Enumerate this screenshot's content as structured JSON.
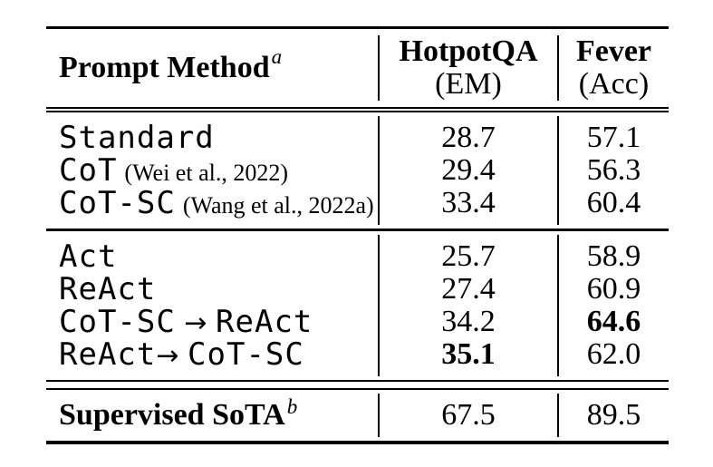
{
  "table": {
    "header": {
      "method_label": "Prompt Method",
      "method_sup": "a",
      "col2_line1": "HotpotQA",
      "col2_line2": "(EM)",
      "col3_line1": "Fever",
      "col3_line2": "(Acc)"
    },
    "section1": {
      "rows": [
        {
          "name": "Standard",
          "em": "28.7",
          "acc": "57.1"
        },
        {
          "name": "CoT",
          "citation": "(Wei et al., 2022)",
          "em": "29.4",
          "acc": "56.3"
        },
        {
          "name": "CoT-SC",
          "citation": "(Wang et al., 2022a)",
          "em": "33.4",
          "acc": "60.4"
        }
      ]
    },
    "section2": {
      "rows": [
        {
          "name": "Act",
          "em": "25.7",
          "acc": "58.9"
        },
        {
          "name": "ReAct",
          "em": "27.4",
          "acc": "60.9"
        },
        {
          "pre": "CoT-SC",
          "arrow": " → ",
          "post": "ReAct",
          "em": "34.2",
          "acc": "64.6"
        },
        {
          "pre": "ReAct",
          "arrow": "→ ",
          "post": "CoT-SC",
          "em": "35.1",
          "acc": "62.0"
        }
      ]
    },
    "section3": {
      "row": {
        "name": "Supervised SoTA",
        "sup": "b",
        "em": "67.5",
        "acc": "89.5"
      }
    },
    "colors": {
      "ink": "#000000",
      "paper": "#ffffff"
    }
  }
}
